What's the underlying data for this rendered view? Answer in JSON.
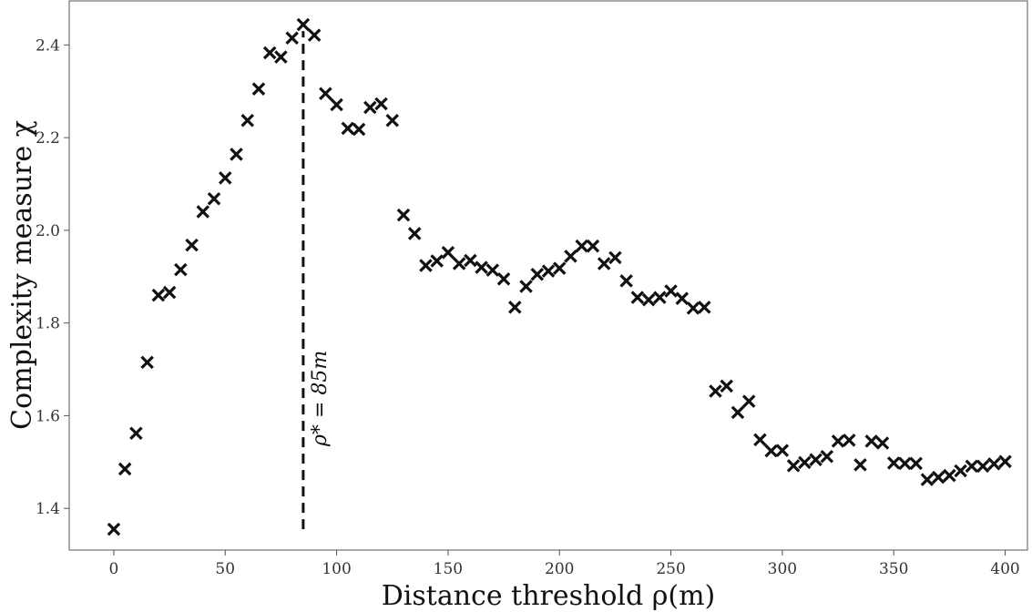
{
  "chart_data": {
    "type": "scatter",
    "title": "",
    "xlabel": "Distance threshold ρ(m)",
    "ylabel": "Complexity measure χ",
    "xlim": [
      -20,
      410
    ],
    "ylim": [
      1.31,
      2.495
    ],
    "xticks": [
      0,
      50,
      100,
      150,
      200,
      250,
      300,
      350,
      400
    ],
    "yticks": [
      1.4,
      1.6,
      1.8,
      2.0,
      2.2,
      2.4
    ],
    "xtick_labels": [
      "0",
      "50",
      "100",
      "150",
      "200",
      "250",
      "300",
      "350",
      "400"
    ],
    "ytick_labels": [
      "1.4",
      "1.6",
      "1.8",
      "2.0",
      "2.2",
      "2.4"
    ],
    "grid": false,
    "marker": "x",
    "marker_color": "#111111",
    "series": [
      {
        "x": [
          0,
          5,
          10,
          15,
          20,
          25,
          30,
          35,
          40,
          45,
          50,
          55,
          60,
          65,
          70,
          75,
          80,
          85,
          90,
          95,
          100,
          105,
          110,
          115,
          120,
          125,
          130,
          135,
          140,
          145,
          150,
          155,
          160,
          165,
          170,
          175,
          180,
          185,
          190,
          195,
          200,
          205,
          210,
          215,
          220,
          225,
          230,
          235,
          240,
          245,
          250,
          255,
          260,
          265,
          270,
          275,
          280,
          285,
          290,
          295,
          300,
          305,
          310,
          315,
          320,
          325,
          330,
          335,
          340,
          345,
          350,
          355,
          360,
          365,
          370,
          375,
          380,
          385,
          390,
          395,
          400
        ],
        "y": [
          1.355,
          1.485,
          1.562,
          1.715,
          1.86,
          1.866,
          1.915,
          1.968,
          2.04,
          2.068,
          2.113,
          2.164,
          2.237,
          2.305,
          2.383,
          2.374,
          2.415,
          2.444,
          2.421,
          2.295,
          2.271,
          2.22,
          2.218,
          2.265,
          2.273,
          2.237,
          2.033,
          1.993,
          1.924,
          1.934,
          1.952,
          1.928,
          1.935,
          1.92,
          1.914,
          1.895,
          1.834,
          1.879,
          1.905,
          1.912,
          1.918,
          1.944,
          1.966,
          1.966,
          1.928,
          1.941,
          1.891,
          1.855,
          1.85,
          1.855,
          1.869,
          1.853,
          1.832,
          1.834,
          1.653,
          1.664,
          1.607,
          1.631,
          1.548,
          1.524,
          1.525,
          1.492,
          1.499,
          1.505,
          1.512,
          1.545,
          1.547,
          1.494,
          1.545,
          1.541,
          1.498,
          1.497,
          1.497,
          1.462,
          1.467,
          1.471,
          1.481,
          1.491,
          1.491,
          1.496,
          1.501
        ]
      }
    ],
    "vline": {
      "x": 85,
      "y_from": 1.355,
      "y_to": 2.43,
      "label": "ρ* = 85m",
      "style": "dashed"
    }
  }
}
